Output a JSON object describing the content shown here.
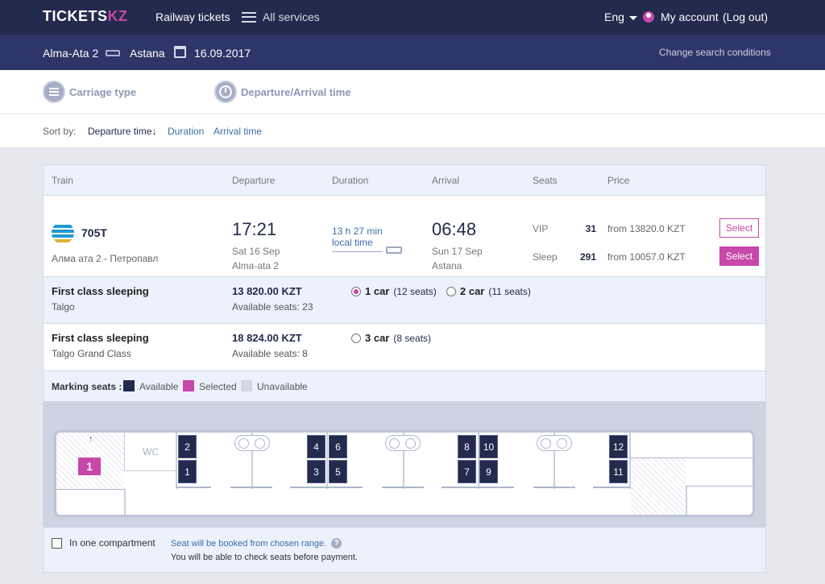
{
  "header": {
    "logo_main": "TICKETS",
    "logo_suffix": "KZ",
    "nav_railway": "Railway tickets",
    "nav_services": "All services",
    "language": "Eng",
    "my_account": "My account",
    "logout": "(Log out)"
  },
  "route": {
    "from": "Alma-Ata 2",
    "to": "Astana",
    "date": "16.09.2017",
    "change_label": "Change search conditions"
  },
  "filters": {
    "carriage_type": "Carriage type",
    "time": "Departure/Arrival time"
  },
  "sort": {
    "label": "Sort by:",
    "options": [
      "Departure time↓",
      "Duration",
      "Arrival time"
    ]
  },
  "table": {
    "headers": [
      "Train",
      "Departure",
      "Duration",
      "Arrival",
      "Seats",
      "Price"
    ]
  },
  "train": {
    "number": "705T",
    "route": "Алма ата 2 - Петропавл",
    "departure_time": "17:21",
    "departure_date": "Sat 16 Sep",
    "departure_station": "Alma-ata 2",
    "duration": "13 h 27 min",
    "duration_note": "local time",
    "arrival_time": "06:48",
    "arrival_date": "Sun 17 Sep",
    "arrival_station": "Astana",
    "classes": [
      {
        "name": "VIP",
        "count": "31",
        "price": "from 13820.0 KZT",
        "button": "Select",
        "active": false
      },
      {
        "name": "Sleep",
        "count": "291",
        "price": "from 10057.0 KZT",
        "button": "Select",
        "active": true
      }
    ]
  },
  "carriages": [
    {
      "title": "First class sleeping",
      "subtitle": "Talgo",
      "price": "13 820.00 KZT",
      "available": "Available seats: 23",
      "options": [
        {
          "car": "1 car",
          "seats": "(12 seats)",
          "selected": true
        },
        {
          "car": "2 car",
          "seats": "(11 seats)",
          "selected": false
        }
      ]
    },
    {
      "title": "First class sleeping",
      "subtitle": "Talgo Grand Class",
      "price": "18 824.00 KZT",
      "available": "Available seats: 8",
      "options": [
        {
          "car": "3 car",
          "seats": "(8 seats)",
          "selected": false
        }
      ]
    }
  ],
  "legend": {
    "label": "Marking seats :",
    "items": [
      {
        "name": "Available",
        "color": "#222a4d"
      },
      {
        "name": "Selected",
        "color": "#c847a8"
      },
      {
        "name": "Unavailable",
        "color": "#d3d7e2"
      }
    ]
  },
  "seat_map": {
    "car_number": "1",
    "wc_label": "WC",
    "arrow": "↑",
    "seats": [
      "2",
      "1",
      "4",
      "3",
      "6",
      "5",
      "8",
      "7",
      "10",
      "9",
      "12",
      "11"
    ]
  },
  "footer": {
    "checkbox_label": "In one compartment",
    "note1": "Seat will be booked from chosen range.",
    "help": "?",
    "note2": "You will be able to check seats before payment."
  }
}
